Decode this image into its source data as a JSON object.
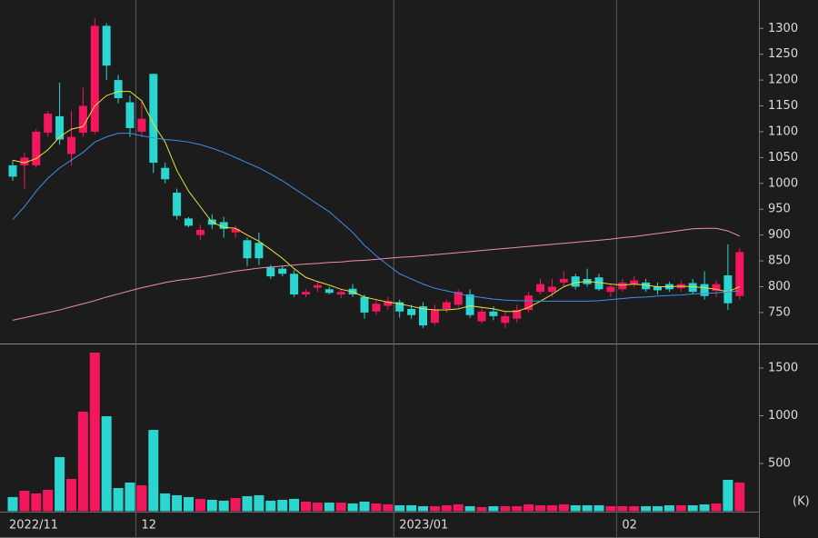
{
  "chart_data": [
    {
      "type": "candlestick",
      "categories": [
        "2022/11",
        null,
        null,
        null,
        null,
        null,
        null,
        null,
        null,
        null,
        null,
        "12",
        null,
        null,
        null,
        null,
        null,
        null,
        null,
        null,
        null,
        null,
        null,
        null,
        null,
        null,
        null,
        null,
        null,
        null,
        null,
        null,
        null,
        "2023/01",
        null,
        null,
        null,
        null,
        null,
        null,
        null,
        null,
        null,
        null,
        null,
        null,
        null,
        null,
        null,
        null,
        null,
        null,
        "02",
        null,
        null,
        null,
        null,
        null,
        null,
        null,
        null,
        null,
        null
      ],
      "open": [
        1035,
        1035,
        1035,
        1098,
        1130,
        1057,
        1098,
        1100,
        1305,
        1200,
        1157,
        1100,
        1212,
        1030,
        982,
        932,
        900,
        930,
        925,
        905,
        890,
        885,
        837,
        835,
        825,
        785,
        798,
        795,
        785,
        796,
        780,
        752,
        763,
        770,
        757,
        762,
        730,
        757,
        765,
        785,
        733,
        752,
        730,
        738,
        755,
        790,
        790,
        808,
        820,
        815,
        818,
        790,
        795,
        805,
        808,
        800,
        805,
        797,
        807,
        805,
        792,
        822,
        782
      ],
      "high": [
        1045,
        1060,
        1105,
        1140,
        1195,
        1140,
        1185,
        1320,
        1310,
        1210,
        1170,
        1160,
        1212,
        1040,
        990,
        935,
        920,
        940,
        935,
        918,
        895,
        905,
        842,
        840,
        832,
        795,
        810,
        800,
        795,
        805,
        785,
        775,
        780,
        775,
        765,
        770,
        765,
        775,
        795,
        795,
        760,
        762,
        752,
        765,
        790,
        815,
        815,
        830,
        825,
        835,
        825,
        805,
        815,
        820,
        815,
        808,
        810,
        812,
        815,
        830,
        812,
        882,
        875
      ],
      "low": [
        1005,
        990,
        1030,
        1090,
        1075,
        1035,
        1090,
        1095,
        1200,
        1155,
        1090,
        1090,
        1020,
        1000,
        930,
        915,
        890,
        912,
        895,
        895,
        840,
        842,
        815,
        820,
        780,
        780,
        790,
        785,
        778,
        780,
        738,
        745,
        755,
        740,
        738,
        720,
        725,
        750,
        760,
        740,
        728,
        735,
        720,
        730,
        750,
        785,
        780,
        800,
        795,
        800,
        792,
        780,
        790,
        798,
        790,
        785,
        790,
        790,
        785,
        775,
        780,
        755,
        775
      ],
      "close": [
        1013,
        1050,
        1100,
        1135,
        1085,
        1090,
        1150,
        1305,
        1228,
        1165,
        1107,
        1125,
        1040,
        1008,
        937,
        918,
        910,
        920,
        912,
        912,
        855,
        855,
        820,
        825,
        785,
        790,
        803,
        788,
        790,
        785,
        750,
        767,
        772,
        752,
        745,
        725,
        755,
        770,
        790,
        745,
        752,
        743,
        743,
        755,
        783,
        805,
        800,
        815,
        800,
        805,
        795,
        800,
        808,
        812,
        795,
        793,
        795,
        805,
        790,
        782,
        805,
        768,
        867
      ],
      "up_color": "#f5175e",
      "down_color": "#2ad6cf",
      "series": [
        {
          "color": "#e8e23a",
          "values": [
            1045,
            1040,
            1048,
            1065,
            1090,
            1105,
            1110,
            1150,
            1170,
            1178,
            1178,
            1160,
            1115,
            1080,
            1025,
            985,
            955,
            925,
            915,
            913,
            900,
            888,
            872,
            855,
            835,
            818,
            810,
            803,
            795,
            790,
            780,
            775,
            770,
            767,
            762,
            757,
            755,
            755,
            757,
            763,
            760,
            757,
            752,
            752,
            760,
            772,
            785,
            800,
            808,
            810,
            808,
            805,
            803,
            805,
            803,
            800,
            800,
            801,
            800,
            798,
            795,
            790,
            800
          ]
        },
        {
          "color": "#3f8fe6",
          "values": [
            930,
            955,
            985,
            1010,
            1030,
            1045,
            1060,
            1080,
            1090,
            1097,
            1097,
            1092,
            1088,
            1085,
            1083,
            1080,
            1075,
            1068,
            1060,
            1050,
            1040,
            1030,
            1018,
            1005,
            990,
            975,
            960,
            945,
            925,
            905,
            880,
            860,
            842,
            825,
            815,
            805,
            797,
            792,
            787,
            782,
            779,
            776,
            774,
            773,
            773,
            772,
            772,
            772,
            772,
            772,
            773,
            775,
            777,
            779,
            780,
            782,
            783,
            784,
            786,
            787,
            788,
            790,
            792
          ]
        },
        {
          "color": "#f08cb0",
          "values": [
            735,
            740,
            745,
            750,
            755,
            761,
            767,
            773,
            780,
            786,
            792,
            798,
            803,
            808,
            812,
            815,
            818,
            822,
            826,
            830,
            833,
            836,
            838,
            840,
            842,
            844,
            845,
            847,
            848,
            850,
            851,
            853,
            855,
            857,
            858,
            860,
            862,
            864,
            866,
            868,
            870,
            872,
            874,
            876,
            878,
            880,
            882,
            884,
            886,
            888,
            890,
            892,
            895,
            897,
            900,
            903,
            906,
            909,
            912,
            913,
            913,
            908,
            898
          ]
        }
      ],
      "ylim": [
        690,
        1355
      ],
      "yticks": [
        750,
        800,
        850,
        900,
        950,
        1000,
        1050,
        1100,
        1150,
        1200,
        1250,
        1300
      ]
    },
    {
      "type": "bar",
      "values": [
        148,
        214,
        186,
        224,
        567,
        338,
        1043,
        1662,
        995,
        243,
        300,
        271,
        852,
        186,
        167,
        148,
        129,
        119,
        110,
        138,
        157,
        167,
        110,
        119,
        129,
        100,
        90,
        90,
        90,
        81,
        100,
        81,
        71,
        62,
        62,
        52,
        52,
        62,
        71,
        52,
        43,
        52,
        52,
        52,
        71,
        62,
        62,
        71,
        62,
        62,
        62,
        52,
        52,
        52,
        52,
        52,
        62,
        62,
        62,
        71,
        81,
        329,
        300
      ],
      "ylim": [
        0,
        1738
      ],
      "yticks": [
        500,
        1000,
        1500
      ],
      "unit_label": "(K)"
    }
  ]
}
